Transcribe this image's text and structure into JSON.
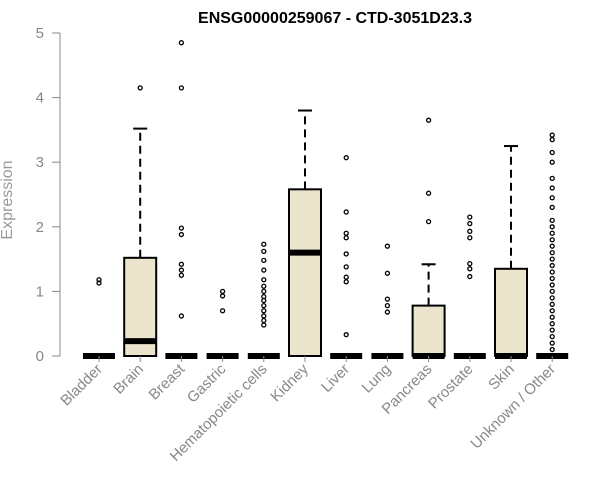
{
  "chart_data": {
    "type": "boxplot",
    "title": "ENSG00000259067 - CTD-3051D23.3",
    "ylabel": "Expression",
    "xlabel": "",
    "ylim": [
      0,
      5
    ],
    "yticks": [
      0,
      1,
      2,
      3,
      4,
      5
    ],
    "grid": false,
    "box_color": "#ebe5cd",
    "categories": [
      "Bladder",
      "Brain",
      "Breast",
      "Gastric",
      "Hematopoietic cells",
      "Kidney",
      "Liver",
      "Lung",
      "Pancreas",
      "Prostate",
      "Skin",
      "Unknown / Other"
    ],
    "boxes": [
      {
        "q1": 0,
        "median": 0,
        "q3": 0,
        "whisker_low": 0,
        "whisker_high": 0,
        "outliers": [
          1.13,
          1.18
        ]
      },
      {
        "q1": 0,
        "median": 0.23,
        "q3": 1.52,
        "whisker_low": 0,
        "whisker_high": 3.52,
        "outliers": [
          4.15
        ]
      },
      {
        "q1": 0,
        "median": 0,
        "q3": 0,
        "whisker_low": 0,
        "whisker_high": 0,
        "outliers": [
          0.62,
          1.25,
          1.33,
          1.42,
          1.88,
          1.98,
          4.15,
          4.85
        ]
      },
      {
        "q1": 0,
        "median": 0,
        "q3": 0,
        "whisker_low": 0,
        "whisker_high": 0,
        "outliers": [
          0.7,
          0.93,
          1.0
        ]
      },
      {
        "q1": 0,
        "median": 0,
        "q3": 0,
        "whisker_low": 0,
        "whisker_high": 0,
        "outliers": [
          0.48,
          0.55,
          0.62,
          0.7,
          0.78,
          0.86,
          0.92,
          1.0,
          1.08,
          1.18,
          1.33,
          1.48,
          1.62,
          1.73
        ]
      },
      {
        "q1": 0,
        "median": 1.6,
        "q3": 2.58,
        "whisker_low": 0,
        "whisker_high": 3.8,
        "outliers": []
      },
      {
        "q1": 0,
        "median": 0,
        "q3": 0,
        "whisker_low": 0,
        "whisker_high": 0,
        "outliers": [
          0.33,
          1.15,
          1.22,
          1.38,
          1.58,
          1.83,
          1.9,
          2.23,
          3.07
        ]
      },
      {
        "q1": 0,
        "median": 0,
        "q3": 0,
        "whisker_low": 0,
        "whisker_high": 0,
        "outliers": [
          0.68,
          0.78,
          0.88,
          1.28,
          1.7
        ]
      },
      {
        "q1": 0,
        "median": 0,
        "q3": 0.78,
        "whisker_low": 0,
        "whisker_high": 1.42,
        "outliers": [
          2.08,
          2.52,
          3.65
        ]
      },
      {
        "q1": 0,
        "median": 0,
        "q3": 0,
        "whisker_low": 0,
        "whisker_high": 0,
        "outliers": [
          1.23,
          1.35,
          1.43,
          1.83,
          1.93,
          2.05,
          2.15
        ]
      },
      {
        "q1": 0,
        "median": 0,
        "q3": 1.35,
        "whisker_low": 0,
        "whisker_high": 3.25,
        "outliers": []
      },
      {
        "q1": 0,
        "median": 0,
        "q3": 0,
        "whisker_low": 0,
        "whisker_high": 0,
        "outliers": [
          0.1,
          0.2,
          0.3,
          0.4,
          0.5,
          0.6,
          0.7,
          0.8,
          0.9,
          1.0,
          1.1,
          1.2,
          1.3,
          1.4,
          1.5,
          1.6,
          1.7,
          1.8,
          1.9,
          2.0,
          2.1,
          2.3,
          2.45,
          2.6,
          2.75,
          3.0,
          3.15,
          3.35,
          3.42
        ]
      }
    ]
  }
}
